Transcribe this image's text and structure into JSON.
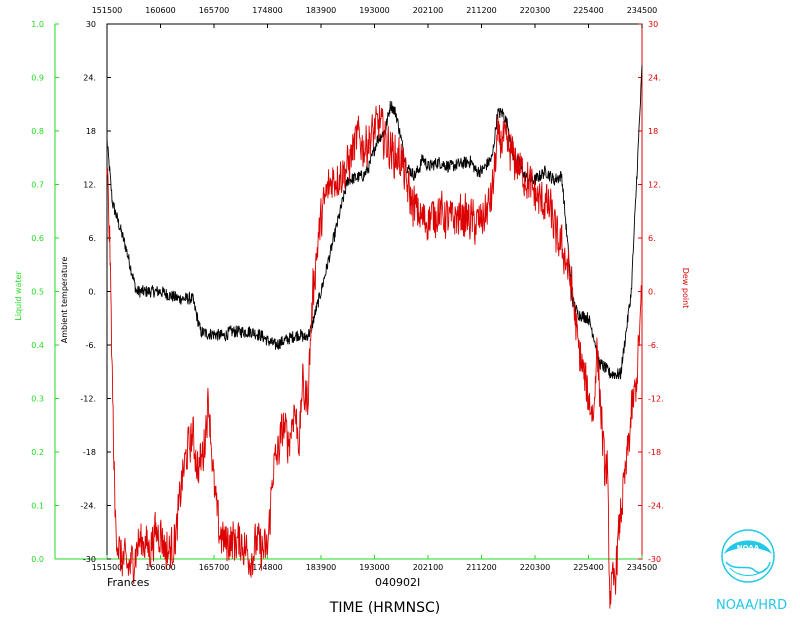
{
  "chart_data": {
    "type": "line",
    "xlabel": "TIME (HRMNSC)",
    "x_ticks": [
      "151500",
      "160600",
      "165700",
      "174800",
      "183900",
      "193000",
      "202100",
      "211200",
      "220300",
      "225400",
      "234500"
    ],
    "left_axis": {
      "label": "Liquid water",
      "ticks": [
        "0.0",
        "0.1",
        "0.2",
        "0.3",
        "0.4",
        "0.5",
        "0.6",
        "0.7",
        "0.8",
        "0.9",
        "1.0"
      ],
      "ylim": [
        0,
        1.0
      ],
      "color": "#22dd22"
    },
    "temp_axis": {
      "label": "Ambient temperature",
      "ticks": [
        "-30",
        "-24.",
        "-18",
        "-12.",
        "-6.",
        "0.",
        "6.",
        "12.",
        "18",
        "24.",
        "30"
      ],
      "ylim": [
        -30,
        30
      ],
      "color": "#000000"
    },
    "right_axis": {
      "label": "Dew point",
      "ticks": [
        "-30",
        "-24.",
        "-18",
        "-12.",
        "-6.",
        "0.",
        "6.",
        "12.",
        "18",
        "24.",
        "30"
      ],
      "ylim": [
        -30,
        30
      ],
      "color": "#dd0000"
    },
    "annotations": [
      "Frances",
      "040902I"
    ],
    "series": [
      {
        "name": "Ambient temperature",
        "color": "#000000",
        "noise": 0.7,
        "x": [
          0,
          0.1,
          0.2,
          0.35,
          0.55,
          0.7,
          1.0,
          1.2,
          1.35,
          1.6,
          1.75,
          1.85,
          2.0,
          2.2,
          2.3,
          2.7,
          2.9,
          3.0,
          3.15,
          3.5,
          3.6,
          3.7,
          3.8,
          4.0,
          4.5,
          4.8,
          4.9,
          5.0,
          5.05,
          5.2,
          5.3,
          5.4,
          5.5,
          5.6,
          5.75,
          5.85,
          5.9,
          6.0,
          6.2,
          6.4,
          6.6,
          6.8,
          6.9,
          7.0,
          7.2,
          7.3,
          7.4,
          7.5,
          7.6,
          7.7,
          7.8,
          7.9,
          8.0,
          8.2,
          8.35,
          8.5,
          8.6,
          8.7,
          8.8,
          9.0,
          9.1,
          9.2,
          9.3,
          9.4,
          9.6,
          9.8,
          10.0
        ],
        "y": [
          17,
          10,
          8,
          5,
          0,
          0,
          0,
          -0.5,
          -0.8,
          -0.8,
          -4.5,
          -4.7,
          -4.8,
          -5,
          -4.5,
          -4.5,
          -5,
          -5.5,
          -6,
          -5,
          -4.8,
          -5.2,
          -4.5,
          0,
          12.5,
          13,
          14,
          16,
          17,
          18,
          21,
          20,
          17,
          14,
          13,
          14,
          15,
          14,
          14.5,
          14,
          14.3,
          14.6,
          13.5,
          13.5,
          15,
          20,
          20,
          18.5,
          15,
          14.5,
          13,
          12.5,
          12.5,
          13.5,
          12.5,
          13,
          6,
          -1,
          -2.5,
          -3,
          -5,
          -8,
          -8.5,
          -9.2,
          -9.3,
          0,
          25
        ]
      },
      {
        "name": "Dew point",
        "color": "#dd0000",
        "noise": 2.2,
        "x": [
          0,
          0.05,
          0.1,
          0.15,
          0.2,
          0.25,
          0.3,
          0.4,
          0.5,
          0.6,
          0.7,
          0.8,
          0.9,
          1.0,
          1.1,
          1.2,
          1.3,
          1.4,
          1.5,
          1.6,
          1.7,
          1.8,
          1.9,
          2.0,
          2.1,
          2.2,
          2.3,
          2.4,
          2.5,
          2.6,
          2.7,
          2.8,
          2.9,
          3.0,
          3.05,
          3.1,
          3.2,
          3.3,
          3.4,
          3.5,
          3.6,
          3.65,
          3.7,
          3.75,
          3.8,
          3.85,
          3.9,
          3.95,
          4.0,
          4.1,
          4.2,
          4.35,
          4.5,
          4.6,
          4.7,
          4.8,
          4.9,
          5.0,
          5.1,
          5.2,
          5.3,
          5.4,
          5.5,
          5.6,
          5.7,
          5.8,
          5.9,
          6.0,
          6.2,
          6.4,
          6.6,
          6.8,
          6.9,
          7.0,
          7.1,
          7.2,
          7.3,
          7.4,
          7.5,
          7.6,
          7.7,
          7.8,
          7.9,
          8.0,
          8.1,
          8.2,
          8.3,
          8.4,
          8.5,
          8.6,
          8.7,
          8.8,
          8.9,
          9.0,
          9.1,
          9.15,
          9.2,
          9.25,
          9.3,
          9.35,
          9.4,
          9.5,
          9.6,
          9.7,
          9.8,
          9.9,
          10.0
        ],
        "y": [
          14,
          6,
          -10,
          -25,
          -28,
          -30,
          -30,
          -31,
          -30,
          -28,
          -28,
          -29,
          -27,
          -27,
          -29,
          -29,
          -27,
          -21,
          -18,
          -16,
          -20,
          -18,
          -12,
          -22,
          -27,
          -28,
          -28,
          -28,
          -28,
          -29,
          -30,
          -28,
          -29,
          -29,
          -25,
          -20,
          -18,
          -15,
          -17,
          -13,
          -17,
          -10,
          -12,
          -12,
          -6,
          0,
          3,
          6,
          8,
          11,
          12.5,
          13,
          14,
          16,
          17.5,
          16,
          17,
          18,
          19,
          17,
          16,
          15,
          15,
          12,
          10,
          9,
          8,
          8,
          9,
          8,
          8.5,
          8,
          7.5,
          8,
          9,
          11,
          17,
          17,
          16,
          15,
          14,
          13,
          12,
          11,
          10,
          10,
          9,
          6,
          5,
          3,
          0,
          -6,
          -9,
          -12,
          -14,
          -6,
          -10,
          -15,
          -20,
          -20,
          -34,
          -32,
          -25,
          -20,
          -14,
          -10,
          0
        ]
      }
    ]
  },
  "logo": {
    "icon": "noaa-logo-icon",
    "text": "NOAA",
    "caption": "NOAA/HRD",
    "color": "#22c8e6"
  }
}
